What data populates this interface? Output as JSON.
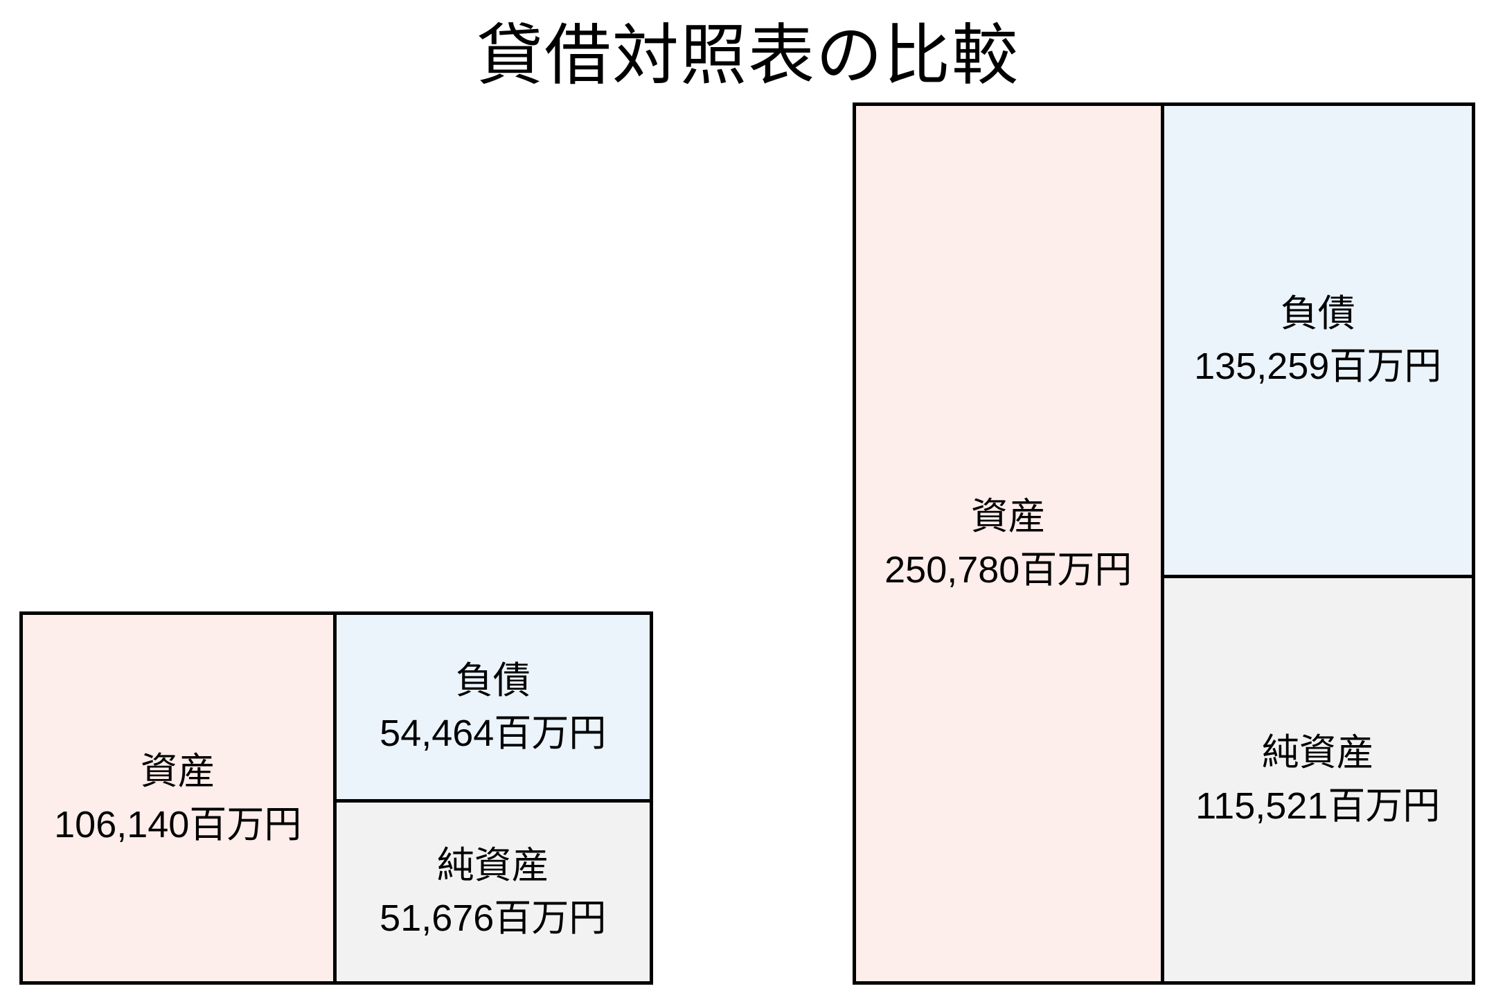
{
  "title": "貸借対照表の比較",
  "chart_data": {
    "type": "bar",
    "subtype": "stacked-proportional-balance-sheet-boxes",
    "title": "貸借対照表の比較",
    "unit": "百万円",
    "legend": "none",
    "axes": "none",
    "layout": "two boxes bottom-aligned, heights proportional to total assets; left half of each box = assets, right half split top/bottom into liabilities/net assets proportional to value",
    "sheets": [
      {
        "name": "small-balance-sheet",
        "assets": {
          "label": "資産",
          "value": 106140,
          "display": "106,140百万円"
        },
        "liabilities": {
          "label": "負債",
          "value": 54464,
          "display": "54,464百万円"
        },
        "net_assets": {
          "label": "純資産",
          "value": 51676,
          "display": "51,676百万円"
        }
      },
      {
        "name": "large-balance-sheet",
        "assets": {
          "label": "資産",
          "value": 250780,
          "display": "250,780百万円"
        },
        "liabilities": {
          "label": "負債",
          "value": 135259,
          "display": "135,259百万円"
        },
        "net_assets": {
          "label": "純資産",
          "value": 115521,
          "display": "115,521百万円"
        }
      }
    ],
    "colors": {
      "assets": "#fdedeb",
      "liabilities": "#ebf3fb",
      "net_assets": "#f2f2f2",
      "border": "#000000",
      "text": "#000000",
      "background": "#ffffff"
    },
    "pixels_per_unit": 0.00508
  }
}
